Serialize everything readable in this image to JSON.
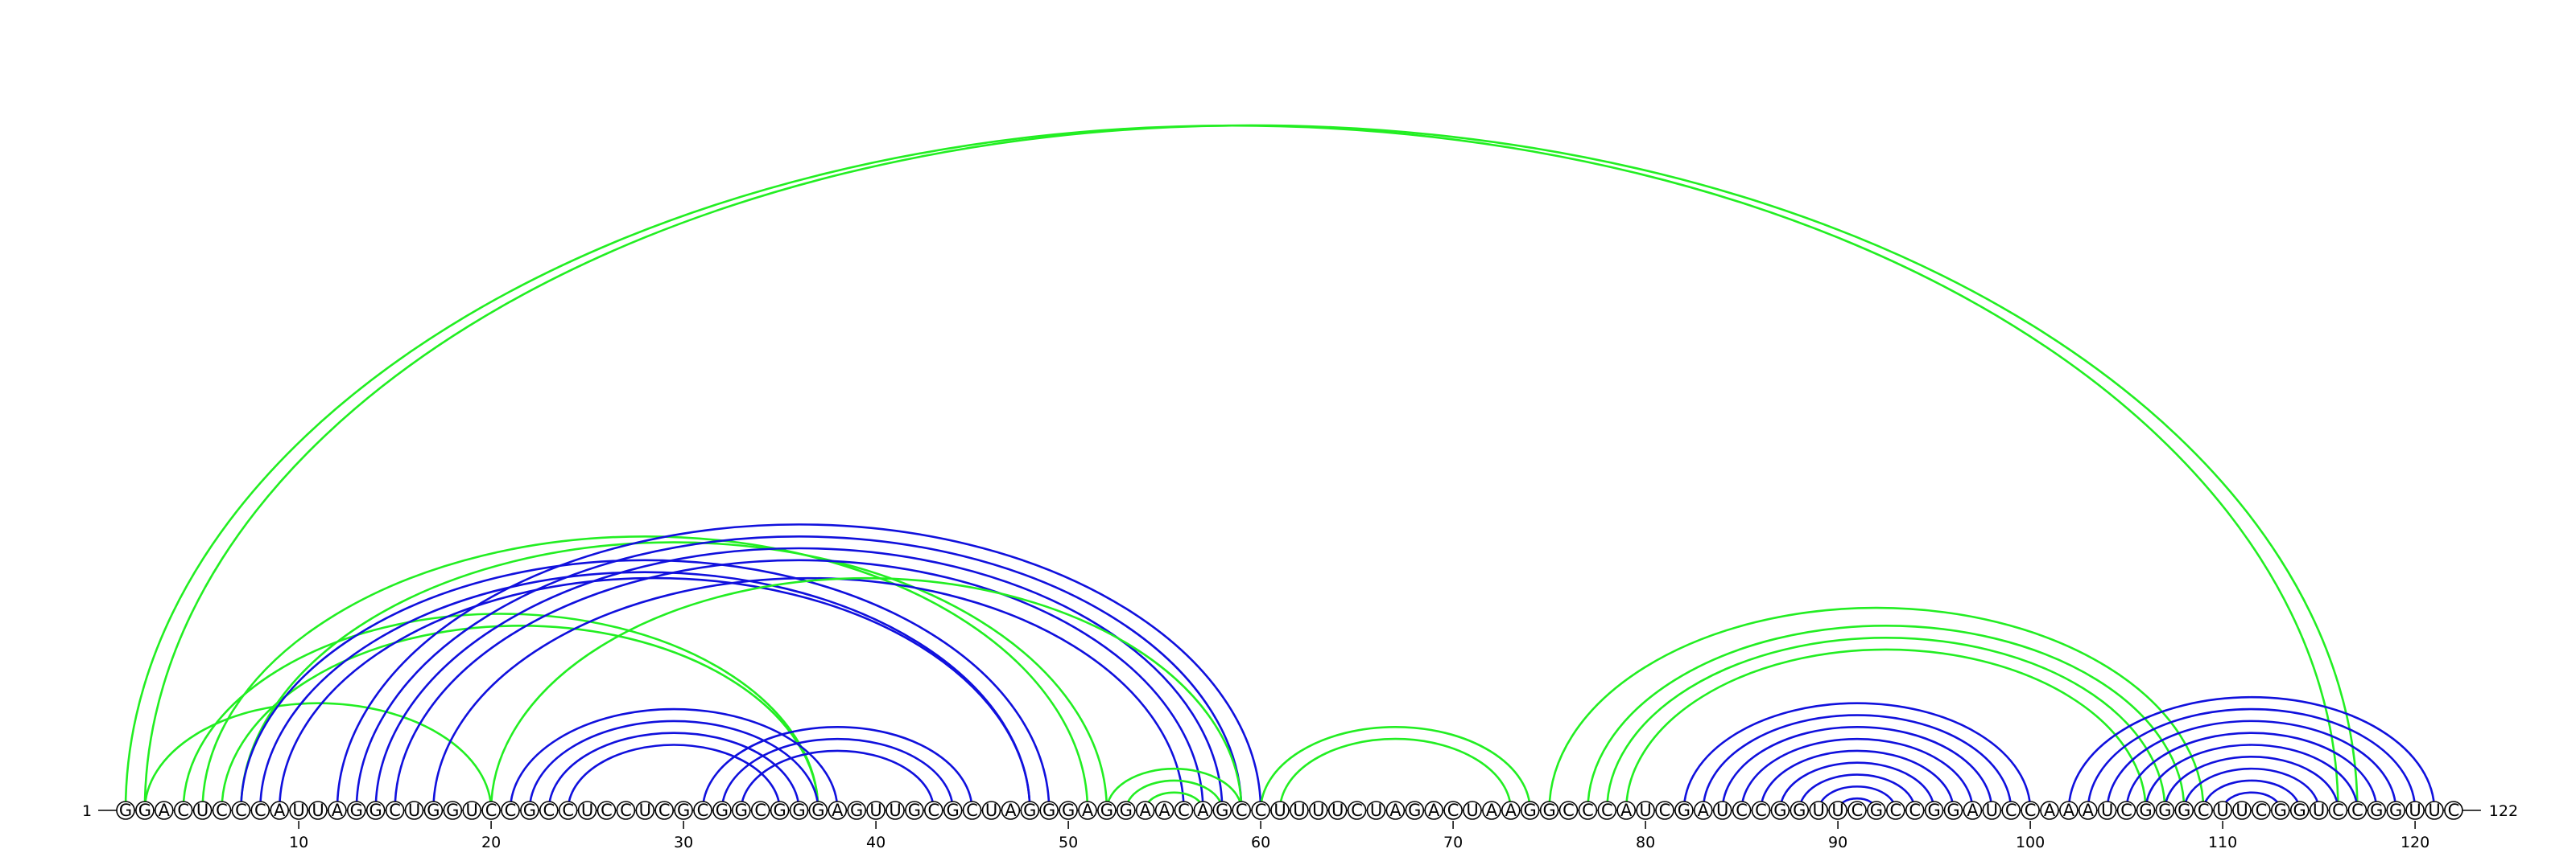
{
  "chart_data": {
    "type": "arc-diagram",
    "sequence": "GGACUCCCAUUAGGCUGGUCCGCCUCCUCGCGGCGGGAGUUGCGCUAGGGAGGAACAGCCUUUUCUAGACUAAGGCCCAUCGAUCCGGUUCGCCGGAUCCAAAUCGGGCUUCGGUCCGGUUC",
    "length": 122,
    "start_label": "1",
    "end_label": "122",
    "tick_positions": [
      10,
      20,
      30,
      40,
      50,
      60,
      70,
      80,
      90,
      100,
      110,
      120
    ],
    "colors": {
      "green": "#22ee22",
      "blue": "#1010dd"
    },
    "arcs": [
      {
        "i": 1,
        "j": 116,
        "color": "green"
      },
      {
        "i": 2,
        "j": 117,
        "color": "green"
      },
      {
        "i": 2,
        "j": 20,
        "color": "green"
      },
      {
        "i": 4,
        "j": 37,
        "color": "green"
      },
      {
        "i": 5,
        "j": 51,
        "color": "green"
      },
      {
        "i": 6,
        "j": 37,
        "color": "green"
      },
      {
        "i": 7,
        "j": 52,
        "color": "green"
      },
      {
        "i": 7,
        "j": 49,
        "color": "blue"
      },
      {
        "i": 8,
        "j": 48,
        "color": "blue"
      },
      {
        "i": 9,
        "j": 48,
        "color": "blue"
      },
      {
        "i": 12,
        "j": 60,
        "color": "blue"
      },
      {
        "i": 13,
        "j": 59,
        "color": "blue"
      },
      {
        "i": 14,
        "j": 58,
        "color": "blue"
      },
      {
        "i": 15,
        "j": 57,
        "color": "blue"
      },
      {
        "i": 17,
        "j": 56,
        "color": "blue"
      },
      {
        "i": 21,
        "j": 38,
        "color": "blue"
      },
      {
        "i": 22,
        "j": 37,
        "color": "blue"
      },
      {
        "i": 23,
        "j": 36,
        "color": "blue"
      },
      {
        "i": 24,
        "j": 35,
        "color": "blue"
      },
      {
        "i": 20,
        "j": 59,
        "color": "green"
      },
      {
        "i": 31,
        "j": 45,
        "color": "blue"
      },
      {
        "i": 32,
        "j": 44,
        "color": "blue"
      },
      {
        "i": 33,
        "j": 43,
        "color": "blue"
      },
      {
        "i": 52,
        "j": 59,
        "color": "green"
      },
      {
        "i": 53,
        "j": 58,
        "color": "green"
      },
      {
        "i": 54,
        "j": 57,
        "color": "green"
      },
      {
        "i": 60,
        "j": 74,
        "color": "green"
      },
      {
        "i": 61,
        "j": 73,
        "color": "green"
      },
      {
        "i": 75,
        "j": 109,
        "color": "green"
      },
      {
        "i": 77,
        "j": 108,
        "color": "green"
      },
      {
        "i": 78,
        "j": 107,
        "color": "green"
      },
      {
        "i": 79,
        "j": 106,
        "color": "green"
      },
      {
        "i": 82,
        "j": 100,
        "color": "blue"
      },
      {
        "i": 83,
        "j": 99,
        "color": "blue"
      },
      {
        "i": 84,
        "j": 98,
        "color": "blue"
      },
      {
        "i": 85,
        "j": 97,
        "color": "blue"
      },
      {
        "i": 86,
        "j": 96,
        "color": "blue"
      },
      {
        "i": 87,
        "j": 95,
        "color": "blue"
      },
      {
        "i": 88,
        "j": 94,
        "color": "blue"
      },
      {
        "i": 89,
        "j": 93,
        "color": "blue"
      },
      {
        "i": 90,
        "j": 92,
        "color": "blue"
      },
      {
        "i": 102,
        "j": 121,
        "color": "blue"
      },
      {
        "i": 103,
        "j": 120,
        "color": "blue"
      },
      {
        "i": 104,
        "j": 119,
        "color": "blue"
      },
      {
        "i": 105,
        "j": 118,
        "color": "blue"
      },
      {
        "i": 106,
        "j": 117,
        "color": "blue"
      },
      {
        "i": 107,
        "j": 116,
        "color": "blue"
      },
      {
        "i": 108,
        "j": 115,
        "color": "blue"
      },
      {
        "i": 109,
        "j": 114,
        "color": "blue"
      },
      {
        "i": 110,
        "j": 113,
        "color": "blue"
      }
    ]
  }
}
